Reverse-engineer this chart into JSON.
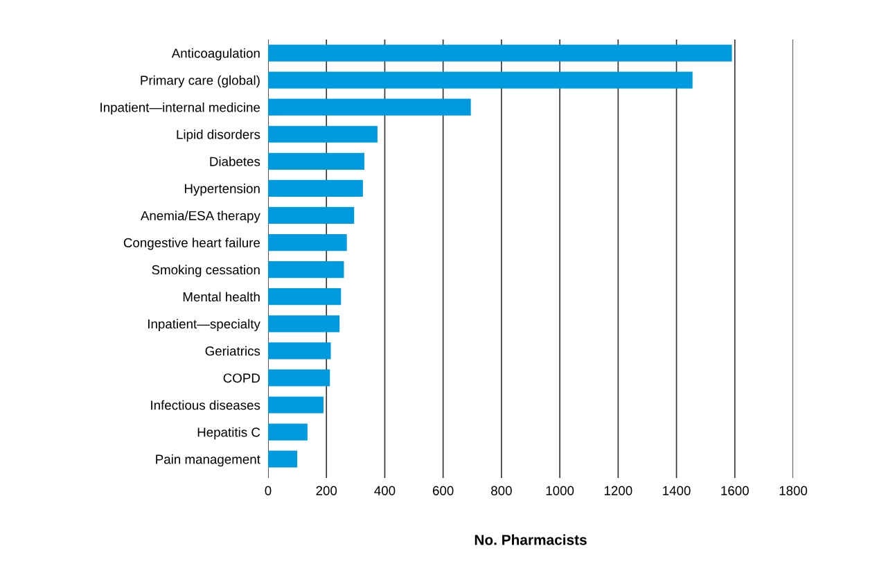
{
  "chart_data": {
    "type": "bar",
    "orientation": "horizontal",
    "xlabel": "No. Pharmacists",
    "categories": [
      "Anticoagulation",
      "Primary care (global)",
      "Inpatient—internal medicine",
      "Lipid disorders",
      "Diabetes",
      "Hypertension",
      "Anemia/ESA therapy",
      "Congestive heart failure",
      "Smoking cessation",
      "Mental health",
      "Inpatient—specialty",
      "Geriatrics",
      "COPD",
      "Infectious diseases",
      "Hepatitis C",
      "Pain management"
    ],
    "values": [
      1590,
      1455,
      695,
      375,
      330,
      325,
      295,
      270,
      260,
      250,
      245,
      215,
      212,
      190,
      135,
      100
    ],
    "color": "#009bdf",
    "xlim": [
      0,
      1800
    ],
    "xticks": [
      0,
      200,
      400,
      600,
      800,
      1000,
      1200,
      1400,
      1600,
      1800
    ],
    "grid": "x"
  }
}
